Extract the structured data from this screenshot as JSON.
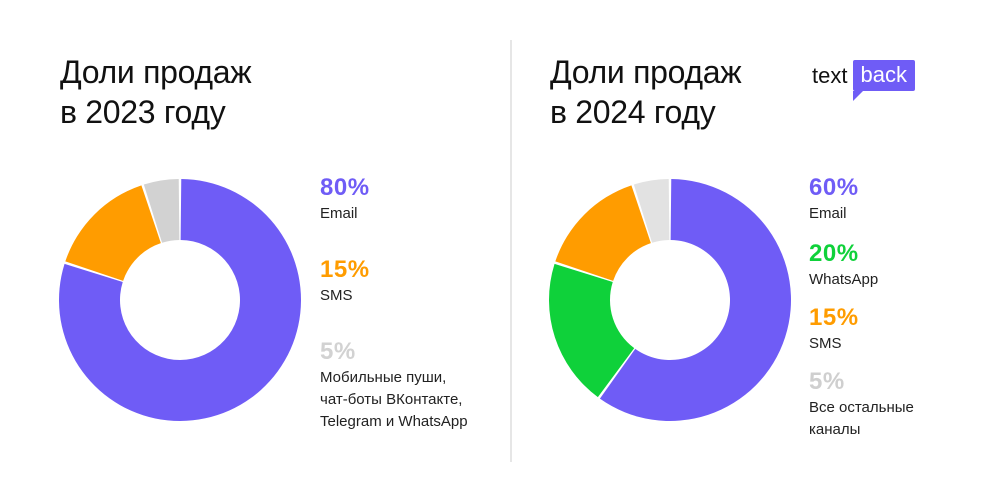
{
  "logo": {
    "text": "text",
    "badge": "back",
    "accent": "#6f5cf6"
  },
  "chart_data": [
    {
      "type": "pie",
      "donut": true,
      "title": "Доли продаж в 2023 году",
      "title_lines": [
        "Доли продаж",
        "в 2023 году"
      ],
      "slices": [
        {
          "value": 80,
          "label": "80%",
          "name_lines": [
            "Email"
          ],
          "color": "#6f5cf6"
        },
        {
          "value": 15,
          "label": "15%",
          "name_lines": [
            "SMS"
          ],
          "color": "#ff9c00"
        },
        {
          "value": 5,
          "label": "5%",
          "name_lines": [
            "Мобильные пуши,",
            "чат-боты ВКонтакте,",
            "Telegram и WhatsApp"
          ],
          "color": "#d2d2d2"
        }
      ]
    },
    {
      "type": "pie",
      "donut": true,
      "title": "Доли продаж в 2024 году",
      "title_lines": [
        "Доли продаж",
        "в 2024 году"
      ],
      "slices": [
        {
          "value": 60,
          "label": "60%",
          "name_lines": [
            "Email"
          ],
          "color": "#6f5cf6"
        },
        {
          "value": 20,
          "label": "20%",
          "name_lines": [
            "WhatsApp"
          ],
          "color": "#0fd13a"
        },
        {
          "value": 15,
          "label": "15%",
          "name_lines": [
            "SMS"
          ],
          "color": "#ff9c00"
        },
        {
          "value": 5,
          "label": "5%",
          "name_lines": [
            "Все остальные",
            "каналы"
          ],
          "color": "#e2e2e2"
        }
      ]
    }
  ]
}
